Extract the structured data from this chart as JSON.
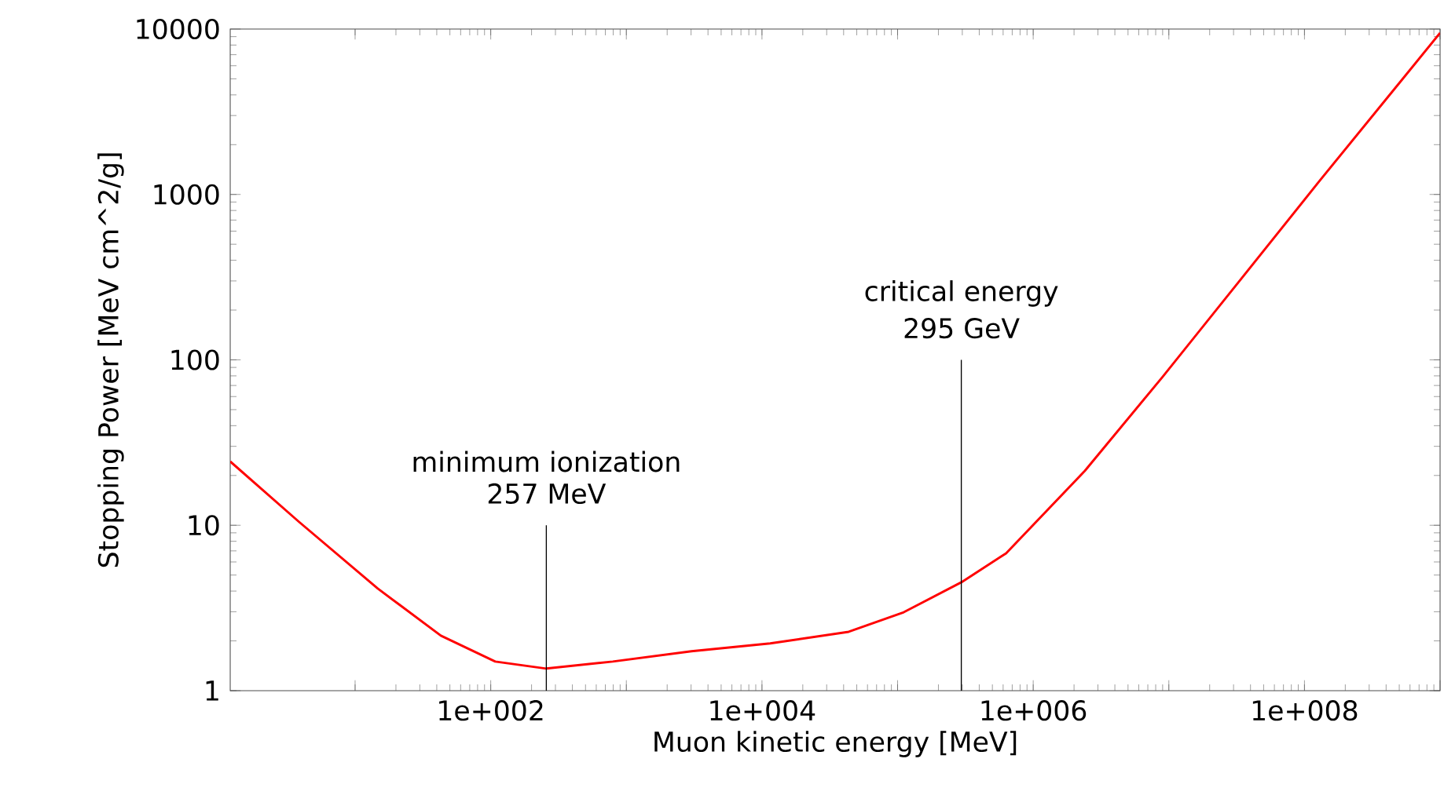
{
  "chart_data": {
    "type": "line",
    "xlabel": "Muon kinetic energy [MeV]",
    "ylabel": "Stopping Power [MeV cm^2/g]",
    "log": "xy",
    "x": [
      1.2,
      3.85,
      14.7,
      42.9,
      108,
      257,
      794,
      3020,
      11500,
      43600,
      111000,
      295000,
      631000,
      2400000,
      9000000,
      34300000,
      130000000,
      1000000000
    ],
    "series": [
      {
        "color": "#ff0000",
        "values": [
          24.3,
          10.5,
          4.14,
          2.15,
          1.5,
          1.36,
          1.5,
          1.73,
          1.93,
          2.27,
          2.98,
          4.52,
          6.77,
          21.3,
          79,
          310,
          1215,
          9470
        ]
      }
    ],
    "xlim": [
      1.2,
      1000000000
    ],
    "ylim": [
      1,
      10000
    ],
    "xticks": [
      {
        "value": 10,
        "label": null
      },
      {
        "value": 100,
        "label": "1e+002"
      },
      {
        "value": 1000,
        "label": null
      },
      {
        "value": 10000,
        "label": "1e+004"
      },
      {
        "value": 100000,
        "label": null
      },
      {
        "value": 1000000,
        "label": "1e+006"
      },
      {
        "value": 10000000,
        "label": null
      },
      {
        "value": 100000000,
        "label": "1e+008"
      },
      {
        "value": 1000000000,
        "label": null
      }
    ],
    "yticks": [
      1,
      10,
      100,
      1000,
      10000
    ],
    "ref_lines": [
      {
        "axis": "x",
        "value": 257,
        "label": "minimum ionization"
      },
      {
        "axis": "x",
        "value": 295000,
        "label": "critical energy"
      }
    ],
    "annotations": [
      {
        "text": "257 MeV",
        "x": 257,
        "y": 10
      },
      {
        "text": "295 GeV",
        "x": 295000,
        "y": 100
      }
    ]
  }
}
